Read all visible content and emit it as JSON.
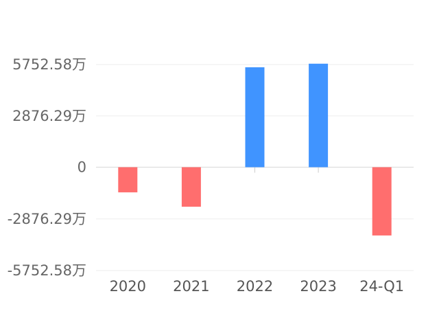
{
  "chart_data": {
    "type": "bar",
    "categories": [
      "2020",
      "2021",
      "2022",
      "2023",
      "24-Q1"
    ],
    "values": [
      -1400,
      -2200,
      5600,
      5800,
      -3800
    ],
    "unit": "万",
    "y_ticks": [
      5752.58,
      2876.29,
      0,
      -2876.29,
      -5752.58
    ],
    "y_tick_labels": [
      "5752.58万",
      "2876.29万",
      "0",
      "-2876.29万",
      "-5752.58万"
    ],
    "ylim": [
      -5752.58,
      5752.58
    ],
    "grid": true,
    "colors": {
      "positive": "#4094ff",
      "negative": "#ff6e6e"
    }
  }
}
